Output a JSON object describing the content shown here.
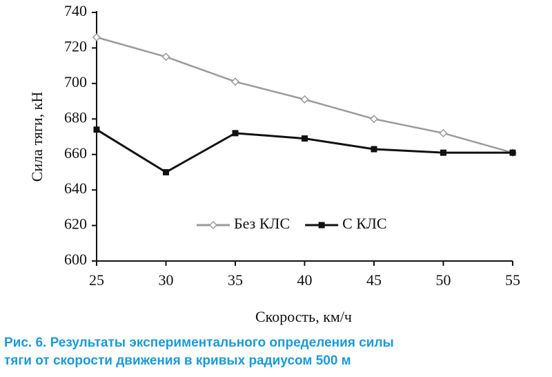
{
  "chart_data": {
    "type": "line",
    "x_label": "Скорость, км/ч",
    "y_label": "Сила тяги, кН",
    "x": [
      25,
      30,
      35,
      40,
      45,
      50,
      55
    ],
    "series": [
      {
        "name": "Без КЛС",
        "color": "#9a9a9a",
        "marker": "diamond",
        "values": [
          726,
          715,
          701,
          691,
          680,
          672,
          661
        ]
      },
      {
        "name": "С КЛС",
        "color": "#111111",
        "marker": "square",
        "values": [
          674,
          650,
          672,
          669,
          663,
          661,
          661
        ]
      }
    ],
    "xlim": [
      25,
      55
    ],
    "xticks": [
      25,
      30,
      35,
      40,
      45,
      50,
      55
    ],
    "ylim": [
      600,
      740
    ],
    "yticks": [
      600,
      620,
      640,
      660,
      680,
      700,
      720,
      740
    ],
    "grid": false,
    "legend": "lower center",
    "caption_lines": [
      "Рис. 6. Результаты экспериментального определения силы",
      "тяги от скорости движения в кривых радиусом 500 м"
    ]
  }
}
